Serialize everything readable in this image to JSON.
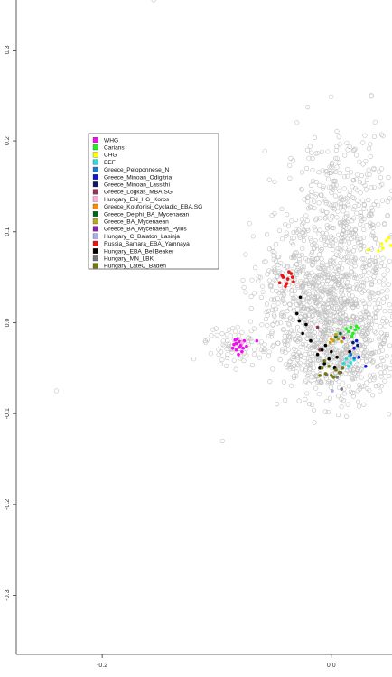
{
  "chart_data": {
    "type": "scatter",
    "title": "",
    "xlabel": "",
    "ylabel": "",
    "xlim": [
      -0.275,
      0.053
    ],
    "ylim": [
      -0.365,
      0.355
    ],
    "x_ticks": [
      {
        "value": -0.2,
        "label": "-0.2"
      },
      {
        "value": 0.0,
        "label": "0.0"
      }
    ],
    "y_ticks": [
      {
        "value": 0.3,
        "label": "0.3"
      },
      {
        "value": 0.2,
        "label": "0.2"
      },
      {
        "value": 0.1,
        "label": "0.1"
      },
      {
        "value": 0.0,
        "label": "0.0"
      },
      {
        "value": -0.1,
        "label": "-0.1"
      },
      {
        "value": -0.2,
        "label": "-0.2"
      },
      {
        "value": -0.3,
        "label": "-0.3"
      }
    ],
    "grid": false,
    "legend_position": "upper-left",
    "background_population": {
      "color": "#c0c0c0",
      "marker": "open-circle",
      "clusters": [
        {
          "cx": 0.01,
          "cy": 0.115,
          "sx": 0.025,
          "sy": 0.045,
          "n": 450
        },
        {
          "cx": -0.005,
          "cy": 0.02,
          "sx": 0.03,
          "sy": 0.035,
          "n": 550
        },
        {
          "cx": 0.005,
          "cy": -0.04,
          "sx": 0.025,
          "sy": 0.025,
          "n": 350
        },
        {
          "cx": -0.03,
          "cy": 0.03,
          "sx": 0.02,
          "sy": 0.03,
          "n": 150
        },
        {
          "cx": -0.085,
          "cy": -0.025,
          "sx": 0.012,
          "sy": 0.012,
          "n": 60
        },
        {
          "cx": 0.02,
          "cy": -0.015,
          "sx": 0.02,
          "sy": 0.03,
          "n": 150
        }
      ],
      "outliers": [
        [
          -0.155,
          0.355
        ],
        [
          -0.24,
          -0.075
        ],
        [
          -0.12,
          -0.04
        ],
        [
          -0.095,
          -0.13
        ],
        [
          -0.03,
          0.22
        ],
        [
          0.035,
          0.25
        ],
        [
          -0.06,
          0.04
        ],
        [
          -0.05,
          0.06
        ],
        [
          0.02,
          0.19
        ],
        [
          -0.11,
          -0.02
        ]
      ]
    },
    "series": [
      {
        "name": "WHG",
        "color": "#ee10ee",
        "points": [
          [
            -0.082,
            -0.018
          ],
          [
            -0.078,
            -0.022
          ],
          [
            -0.08,
            -0.027
          ],
          [
            -0.085,
            -0.024
          ],
          [
            -0.083,
            -0.03
          ],
          [
            -0.077,
            -0.028
          ],
          [
            -0.081,
            -0.035
          ],
          [
            -0.076,
            -0.02
          ],
          [
            -0.084,
            -0.019
          ],
          [
            -0.079,
            -0.025
          ],
          [
            -0.086,
            -0.028
          ],
          [
            -0.074,
            -0.026
          ],
          [
            -0.065,
            -0.02
          ],
          [
            -0.083,
            -0.023
          ],
          [
            -0.078,
            -0.032
          ],
          [
            -0.08,
            -0.021
          ]
        ]
      },
      {
        "name": "Carians",
        "color": "#22ee22",
        "points": [
          [
            0.017,
            -0.005
          ],
          [
            0.021,
            -0.008
          ],
          [
            0.019,
            -0.012
          ],
          [
            0.024,
            -0.006
          ],
          [
            0.015,
            -0.01
          ],
          [
            0.022,
            -0.004
          ],
          [
            0.018,
            -0.015
          ],
          [
            0.013,
            -0.007
          ]
        ]
      },
      {
        "name": "CHG",
        "color": "#ffff00",
        "points": [
          [
            0.048,
            0.09
          ],
          [
            0.052,
            0.085
          ],
          [
            0.05,
            0.093
          ],
          [
            0.045,
            0.082
          ],
          [
            0.041,
            0.079
          ],
          [
            0.044,
            0.087
          ],
          [
            0.032,
            0.08
          ]
        ]
      },
      {
        "name": "EEF",
        "color": "#22dddd",
        "points": [
          [
            0.013,
            -0.04
          ],
          [
            0.017,
            -0.044
          ],
          [
            0.015,
            -0.048
          ],
          [
            0.011,
            -0.045
          ],
          [
            0.02,
            -0.041
          ],
          [
            0.016,
            -0.037
          ]
        ]
      },
      {
        "name": "Greece_Peloponnese_N",
        "color": "#1f77d0",
        "points": [
          [
            0.017,
            -0.035
          ],
          [
            0.02,
            -0.039
          ]
        ]
      },
      {
        "name": "Greece_Minoan_Odigitria",
        "color": "#0a1acc",
        "points": [
          [
            0.022,
            -0.02
          ],
          [
            0.024,
            -0.038
          ],
          [
            0.03,
            -0.048
          ],
          [
            0.02,
            -0.028
          ]
        ]
      },
      {
        "name": "Greece_Minoan_Lassithi",
        "color": "#0a1a66",
        "points": [
          [
            0.023,
            -0.025
          ],
          [
            0.019,
            -0.022
          ]
        ]
      },
      {
        "name": "Greece_Logkas_MBA.SG",
        "color": "#993355",
        "points": [
          [
            -0.012,
            -0.005
          ],
          [
            -0.01,
            -0.03
          ]
        ]
      },
      {
        "name": "Hungary_EN_HG_Koros",
        "color": "#ffaadd",
        "points": [
          [
            -0.078,
            -0.022
          ]
        ]
      },
      {
        "name": "Greece_Koufonisi_Cycladic_EBA.SG",
        "color": "#ff8800",
        "points": [
          [
            0.0,
            -0.018
          ]
        ]
      },
      {
        "name": "Greece_Delphi_BA_Mycenaean",
        "color": "#006622",
        "points": [
          [
            0.008,
            -0.012
          ],
          [
            0.004,
            -0.015
          ]
        ]
      },
      {
        "name": "Greece_BA_Mycenaean",
        "color": "#b8a81c",
        "points": [
          [
            0.002,
            -0.02
          ],
          [
            0.006,
            -0.018
          ],
          [
            0.01,
            -0.016
          ],
          [
            -0.001,
            -0.022
          ],
          [
            0.004,
            -0.013
          ],
          [
            0.009,
            -0.021
          ]
        ]
      },
      {
        "name": "Greece_BA_Mycenaean_Pylos",
        "color": "#8822aa",
        "points": [
          [
            0.011,
            -0.017
          ]
        ]
      },
      {
        "name": "Hungary_C_Balaton_Lasinja",
        "color": "#aaaaee",
        "points": [
          [
            0.001,
            -0.075
          ]
        ]
      },
      {
        "name": "Russia_Samara_EBA_Yamnaya",
        "color": "#ee1111",
        "points": [
          [
            -0.042,
            0.05
          ],
          [
            -0.038,
            0.048
          ],
          [
            -0.035,
            0.054
          ],
          [
            -0.045,
            0.044
          ],
          [
            -0.04,
            0.04
          ],
          [
            -0.033,
            0.045
          ],
          [
            -0.037,
            0.056
          ],
          [
            -0.043,
            0.052
          ],
          [
            -0.039,
            0.043
          ],
          [
            -0.034,
            0.05
          ]
        ]
      },
      {
        "name": "Hungary_EBA_BellBeaker",
        "color": "#000000",
        "points": [
          [
            -0.027,
            0.028
          ],
          [
            -0.03,
            0.01
          ],
          [
            -0.022,
            -0.002
          ],
          [
            -0.025,
            -0.012
          ],
          [
            -0.018,
            -0.02
          ],
          [
            -0.028,
            0.002
          ],
          [
            -0.005,
            -0.025
          ],
          [
            -0.012,
            -0.035
          ],
          [
            -0.002,
            -0.04
          ],
          [
            0.003,
            -0.05
          ],
          [
            -0.008,
            -0.03
          ],
          [
            0.0,
            -0.032
          ],
          [
            -0.006,
            -0.045
          ],
          [
            0.005,
            -0.038
          ],
          [
            0.008,
            -0.055
          ],
          [
            -0.01,
            -0.05
          ],
          [
            0.016,
            -0.032
          ]
        ]
      },
      {
        "name": "Hungary_MN_LBK",
        "color": "#777777",
        "points": [
          [
            0.009,
            -0.073
          ],
          [
            0.005,
            -0.06
          ],
          [
            -0.004,
            -0.057
          ]
        ]
      },
      {
        "name": "Hungary_LateC_Baden",
        "color": "#777711",
        "points": [
          [
            -0.008,
            -0.05
          ],
          [
            -0.005,
            -0.056
          ],
          [
            0.0,
            -0.058
          ],
          [
            -0.01,
            -0.058
          ],
          [
            0.004,
            -0.052
          ],
          [
            -0.002,
            -0.048
          ],
          [
            0.007,
            -0.055
          ],
          [
            -0.006,
            -0.042
          ],
          [
            0.002,
            -0.06
          ],
          [
            0.01,
            -0.05
          ]
        ]
      }
    ]
  }
}
